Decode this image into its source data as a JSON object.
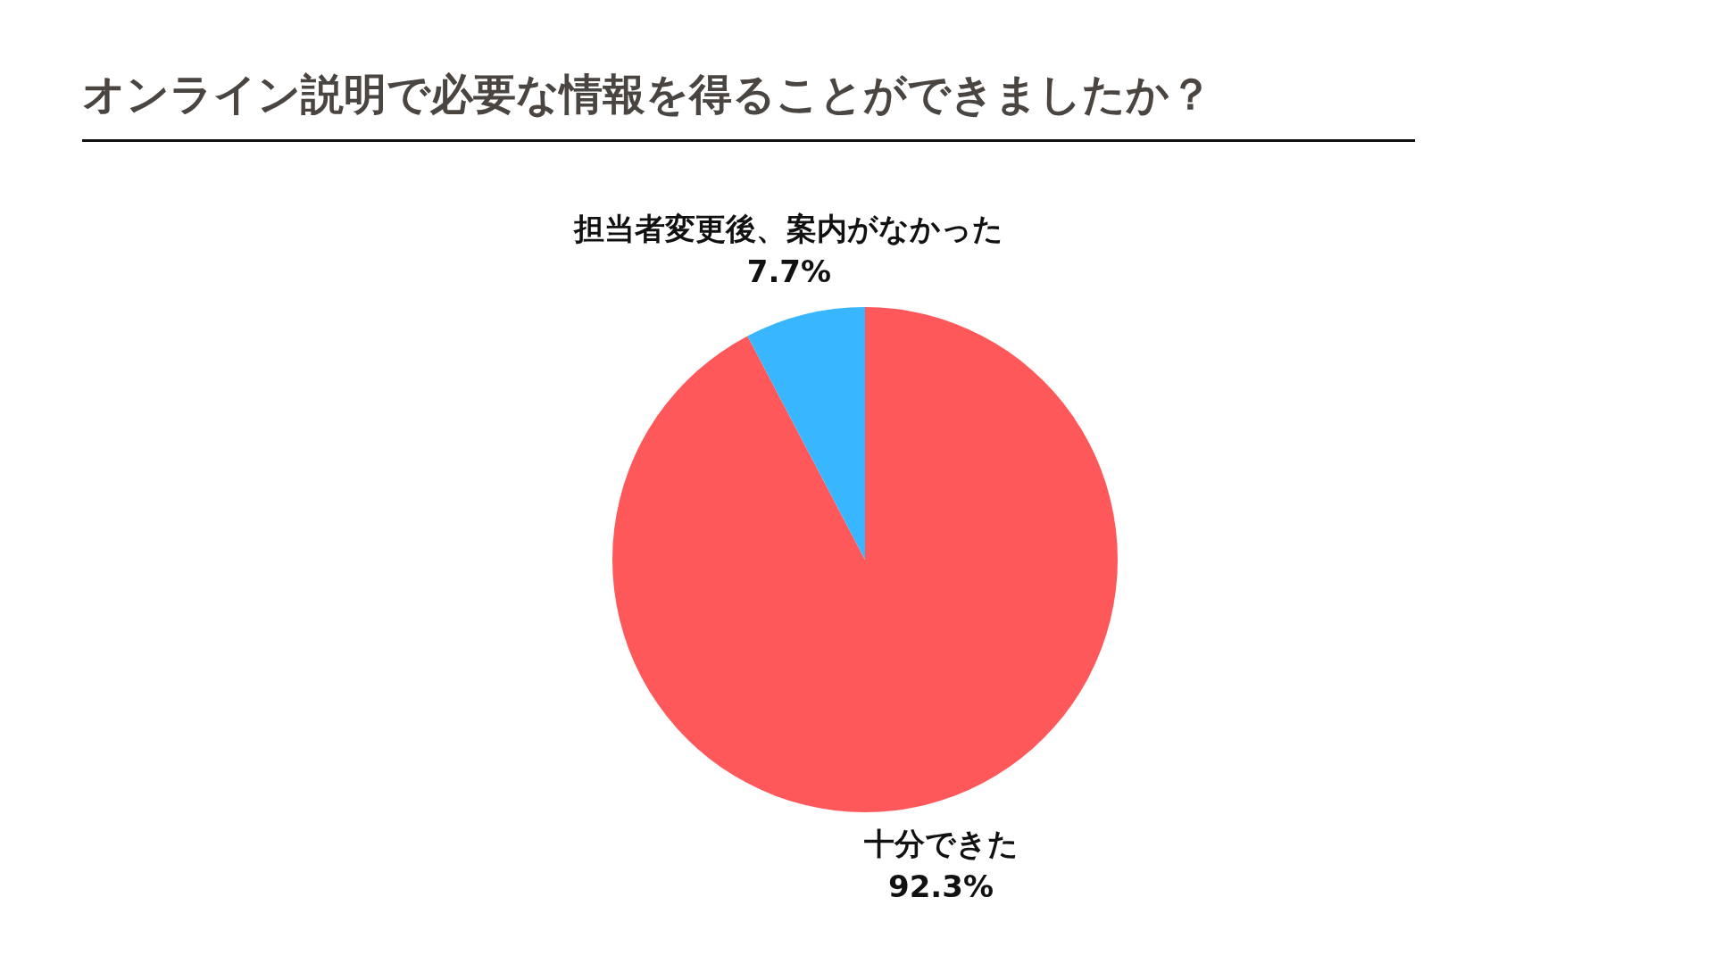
{
  "chart_data": {
    "type": "pie",
    "title": "オンライン説明で必要な情報を得ることができましたか？",
    "categories": [
      "十分できた",
      "担当者変更後、案内がなかった"
    ],
    "values": [
      92.3,
      7.7
    ],
    "colors": [
      "#ff585a",
      "#38b6ff"
    ],
    "value_labels": [
      "92.3%",
      "7.7%"
    ]
  }
}
